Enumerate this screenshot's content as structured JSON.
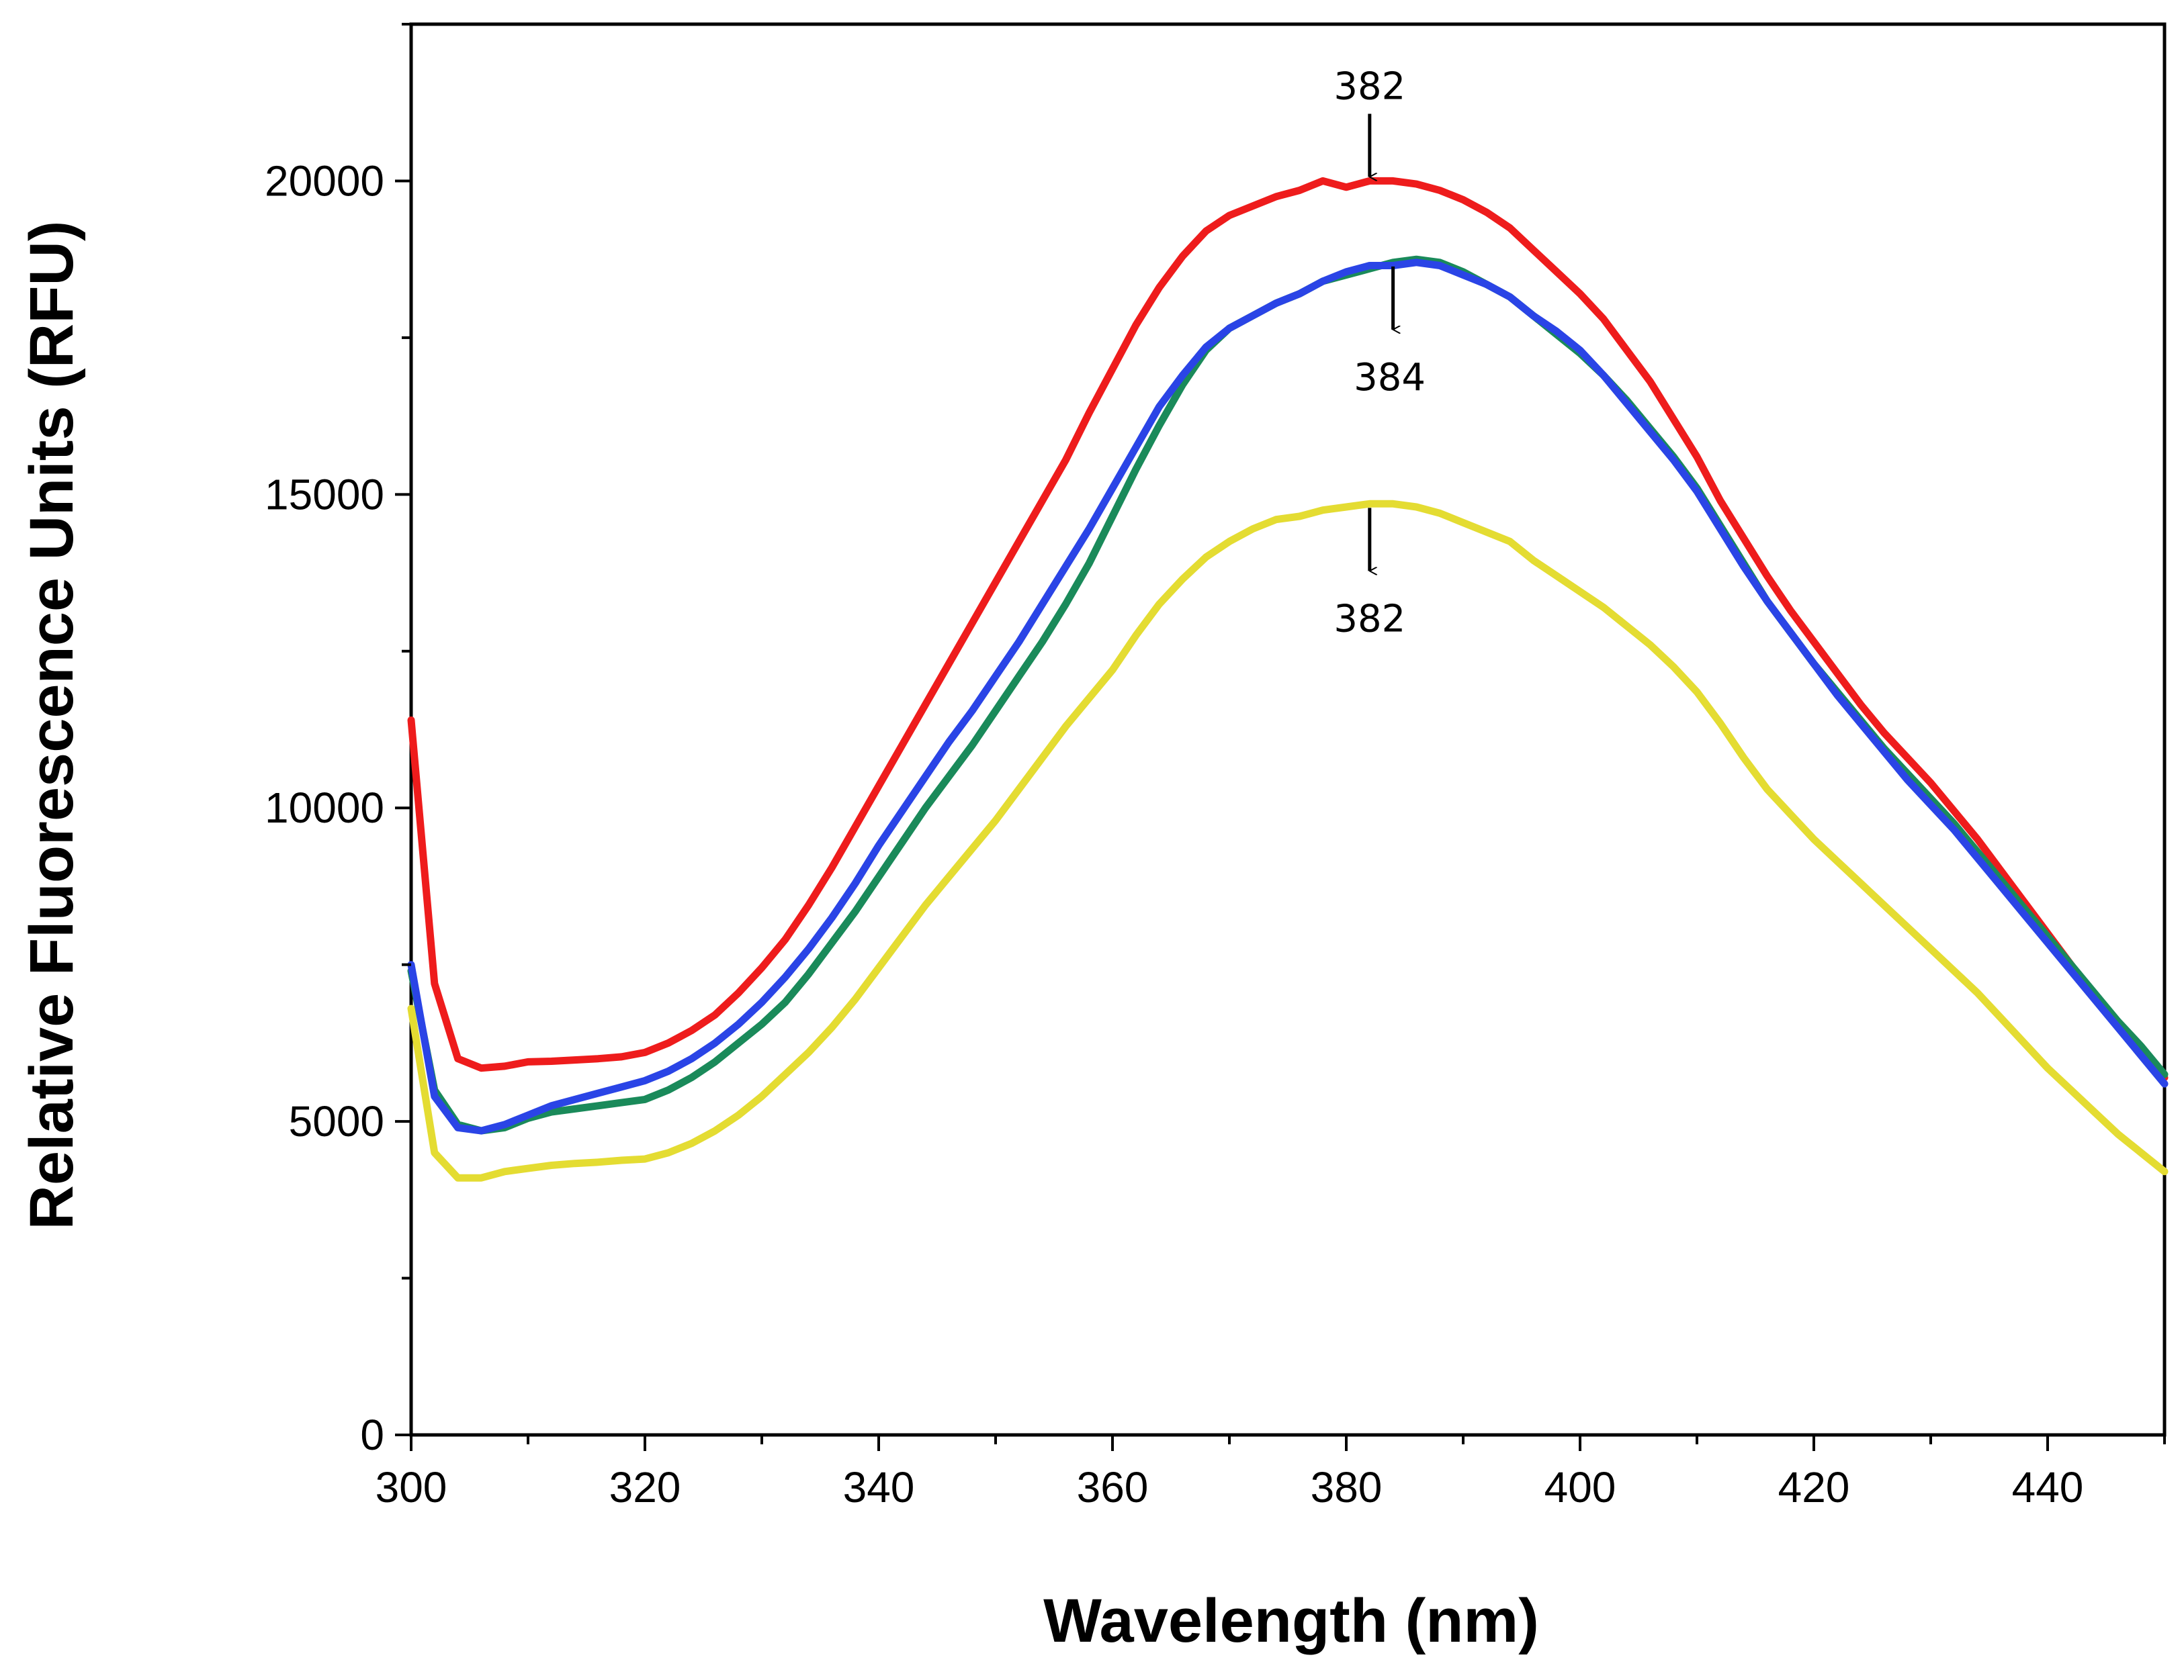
{
  "chart_data": {
    "type": "line",
    "title": "",
    "xlabel": "Wavelength (nm)",
    "ylabel": "Relative Fluorescence Units (RFU)",
    "xlim": [
      300,
      450
    ],
    "ylim": [
      0,
      22500
    ],
    "xticks": [
      300,
      320,
      340,
      360,
      380,
      400,
      420,
      440
    ],
    "yticks": [
      0,
      5000,
      10000,
      15000,
      20000
    ],
    "grid": false,
    "legend": "none",
    "x": [
      300,
      302,
      304,
      306,
      308,
      310,
      312,
      314,
      316,
      318,
      320,
      322,
      324,
      326,
      328,
      330,
      332,
      334,
      336,
      338,
      340,
      342,
      344,
      346,
      348,
      350,
      352,
      354,
      356,
      358,
      360,
      362,
      364,
      366,
      368,
      370,
      372,
      374,
      376,
      378,
      380,
      382,
      384,
      386,
      388,
      390,
      392,
      394,
      396,
      398,
      400,
      402,
      404,
      406,
      408,
      410,
      412,
      414,
      416,
      418,
      420,
      422,
      424,
      426,
      428,
      430,
      432,
      434,
      436,
      438,
      440,
      442,
      444,
      446,
      448,
      450
    ],
    "series": [
      {
        "name": "red",
        "color": "#ee1c1c",
        "values": [
          11400,
          7200,
          6000,
          5850,
          5880,
          5950,
          5960,
          5980,
          6000,
          6030,
          6100,
          6250,
          6450,
          6700,
          7050,
          7450,
          7900,
          8450,
          9050,
          9700,
          10350,
          11000,
          11650,
          12300,
          12950,
          13600,
          14250,
          14900,
          15550,
          16300,
          17000,
          17700,
          18300,
          18800,
          19200,
          19450,
          19600,
          19750,
          19850,
          20000,
          19900,
          20000,
          20000,
          19950,
          19850,
          19700,
          19500,
          19250,
          18900,
          18550,
          18200,
          17800,
          17300,
          16800,
          16200,
          15600,
          14900,
          14300,
          13700,
          13150,
          12650,
          12150,
          11650,
          11200,
          10800,
          10400,
          9950,
          9500,
          9000,
          8500,
          8000,
          7500,
          7000,
          6550,
          6100,
          5700
        ]
      },
      {
        "name": "green",
        "color": "#1a8a5a",
        "values": [
          7400,
          5500,
          4950,
          4850,
          4900,
          5050,
          5150,
          5200,
          5250,
          5300,
          5350,
          5500,
          5700,
          5950,
          6250,
          6550,
          6900,
          7350,
          7850,
          8350,
          8900,
          9450,
          10000,
          10500,
          11000,
          11550,
          12100,
          12650,
          13250,
          13900,
          14650,
          15400,
          16100,
          16750,
          17300,
          17650,
          17850,
          18050,
          18200,
          18400,
          18500,
          18600,
          18700,
          18750,
          18700,
          18550,
          18350,
          18150,
          17850,
          17550,
          17250,
          16900,
          16500,
          16050,
          15600,
          15100,
          14500,
          13900,
          13300,
          12800,
          12300,
          11850,
          11400,
          10950,
          10550,
          10150,
          9750,
          9300,
          8850,
          8400,
          7950,
          7500,
          7050,
          6600,
          6200,
          5750
        ]
      },
      {
        "name": "blue",
        "color": "#2a44e6",
        "values": [
          7500,
          5400,
          4900,
          4850,
          4950,
          5100,
          5250,
          5350,
          5450,
          5550,
          5650,
          5800,
          6000,
          6250,
          6550,
          6900,
          7300,
          7750,
          8250,
          8800,
          9400,
          9950,
          10500,
          11050,
          11550,
          12100,
          12650,
          13250,
          13850,
          14450,
          15100,
          15750,
          16400,
          16900,
          17350,
          17650,
          17850,
          18050,
          18200,
          18400,
          18550,
          18650,
          18650,
          18700,
          18650,
          18500,
          18350,
          18150,
          17850,
          17600,
          17300,
          16900,
          16450,
          16000,
          15550,
          15050,
          14450,
          13850,
          13300,
          12800,
          12300,
          11800,
          11350,
          10900,
          10450,
          10050,
          9650,
          9200,
          8750,
          8300,
          7850,
          7400,
          6950,
          6500,
          6050,
          5600
        ]
      },
      {
        "name": "yellow",
        "color": "#e4dc32",
        "values": [
          6800,
          4500,
          4100,
          4100,
          4200,
          4250,
          4300,
          4330,
          4350,
          4380,
          4400,
          4500,
          4650,
          4850,
          5100,
          5400,
          5750,
          6100,
          6500,
          6950,
          7450,
          7950,
          8450,
          8900,
          9350,
          9800,
          10300,
          10800,
          11300,
          11750,
          12200,
          12750,
          13250,
          13650,
          14000,
          14250,
          14450,
          14600,
          14650,
          14750,
          14800,
          14850,
          14850,
          14800,
          14700,
          14550,
          14400,
          14250,
          13950,
          13700,
          13450,
          13200,
          12900,
          12600,
          12250,
          11850,
          11350,
          10800,
          10300,
          9900,
          9500,
          9150,
          8800,
          8450,
          8100,
          7750,
          7400,
          7050,
          6650,
          6250,
          5850,
          5500,
          5150,
          4800,
          4500,
          4200
        ]
      }
    ],
    "annotations": [
      {
        "text": "382",
        "x": 382,
        "y": 20000,
        "position": "above",
        "series": "red"
      },
      {
        "text": "384",
        "x": 384,
        "y": 18700,
        "position": "below",
        "series": "blue"
      },
      {
        "text": "382",
        "x": 382,
        "y": 14850,
        "position": "below",
        "series": "yellow"
      }
    ]
  }
}
